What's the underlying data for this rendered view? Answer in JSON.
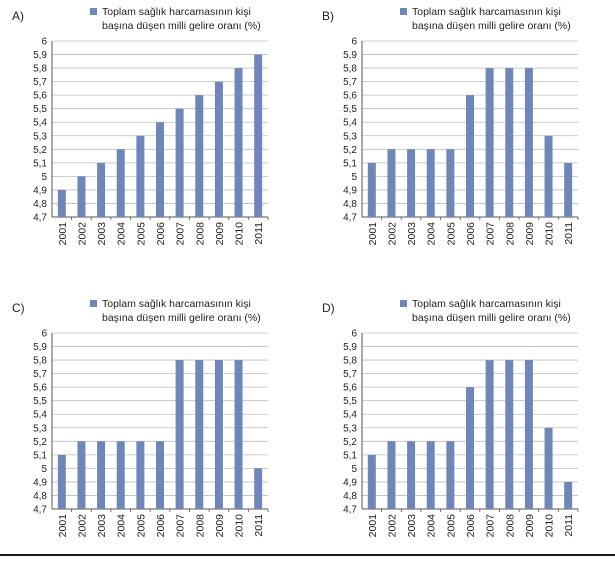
{
  "chart_data": [
    {
      "type": "bar",
      "panel_label": "A)",
      "legend": "Toplam sağlık harcamasının kişi başına düşen milli gelire oranı (%)",
      "legend_lines": [
        "Toplam sağlık harcamasının kişi",
        "başına düşen milli gelire oranı (%)"
      ],
      "categories": [
        "2001",
        "2002",
        "2003",
        "2004",
        "2005",
        "2006",
        "2007",
        "2008",
        "2009",
        "2010",
        "2011"
      ],
      "values": [
        4.9,
        5.0,
        5.1,
        5.2,
        5.3,
        5.4,
        5.5,
        5.6,
        5.7,
        5.8,
        5.9
      ],
      "ylim": [
        4.7,
        6
      ],
      "yticks": [
        "4,7",
        "4,8",
        "4,9",
        "5",
        "5,1",
        "5,2",
        "5,3",
        "5,4",
        "5,5",
        "5,6",
        "5,7",
        "5,8",
        "5,9",
        "6"
      ],
      "grid": true,
      "bar_color": "#6f87b8"
    },
    {
      "type": "bar",
      "panel_label": "B)",
      "legend": "Toplam sağlık harcamasının kişi başına düşen milli gelire oranı (%)",
      "legend_lines": [
        "Toplam sağlık harcamasının kişi",
        "başına düşen milli gelire oranı (%)"
      ],
      "categories": [
        "2001",
        "2002",
        "2003",
        "2004",
        "2005",
        "2006",
        "2007",
        "2008",
        "2009",
        "2010",
        "2011"
      ],
      "values": [
        5.1,
        5.2,
        5.2,
        5.2,
        5.2,
        5.6,
        5.8,
        5.8,
        5.8,
        5.3,
        5.1
      ],
      "ylim": [
        4.7,
        6
      ],
      "yticks": [
        "4,7",
        "4,8",
        "4,9",
        "5",
        "5,1",
        "5,2",
        "5,3",
        "5,4",
        "5,5",
        "5,6",
        "5,7",
        "5,8",
        "5,9",
        "6"
      ],
      "grid": true,
      "bar_color": "#6f87b8"
    },
    {
      "type": "bar",
      "panel_label": "C)",
      "legend": "Toplam sağlık harcamasının kişi başına düşen milli gelire oranı (%)",
      "legend_lines": [
        "Toplam sağlık harcamasının kişi",
        "başına düşen milli gelire oranı (%)"
      ],
      "categories": [
        "2001",
        "2002",
        "2003",
        "2004",
        "2005",
        "2006",
        "2007",
        "2008",
        "2009",
        "2010",
        "2011"
      ],
      "values": [
        5.1,
        5.2,
        5.2,
        5.2,
        5.2,
        5.2,
        5.8,
        5.8,
        5.8,
        5.8,
        5.0
      ],
      "ylim": [
        4.7,
        6
      ],
      "yticks": [
        "4,7",
        "4,8",
        "4,9",
        "5",
        "5,1",
        "5,2",
        "5,3",
        "5,4",
        "5,5",
        "5,6",
        "5,7",
        "5,8",
        "5,9",
        "6"
      ],
      "grid": true,
      "bar_color": "#6f87b8"
    },
    {
      "type": "bar",
      "panel_label": "D)",
      "legend": "Toplam sağlık harcamasının kişi başına düşen milli gelire oranı (%)",
      "legend_lines": [
        "Toplam sağlık harcamasının kişi",
        "başına düşen milli gelire oranı (%)"
      ],
      "categories": [
        "2001",
        "2002",
        "2003",
        "2004",
        "2005",
        "2006",
        "2007",
        "2008",
        "2009",
        "2010",
        "2011"
      ],
      "values": [
        5.1,
        5.2,
        5.2,
        5.2,
        5.2,
        5.6,
        5.8,
        5.8,
        5.8,
        5.3,
        4.9
      ],
      "ylim": [
        4.7,
        6
      ],
      "yticks": [
        "4,7",
        "4,8",
        "4,9",
        "5",
        "5,1",
        "5,2",
        "5,3",
        "5,4",
        "5,5",
        "5,6",
        "5,7",
        "5,8",
        "5,9",
        "6"
      ],
      "grid": true,
      "bar_color": "#6f87b8"
    }
  ]
}
